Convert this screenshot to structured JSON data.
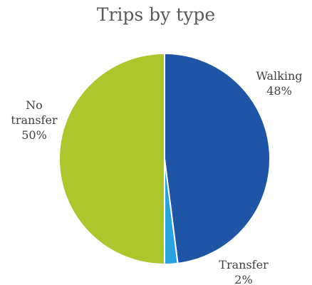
{
  "chart_data": {
    "type": "pie",
    "title": "Trips by type",
    "slices": [
      {
        "name": "Walking",
        "value": 48,
        "pct_label": "48%",
        "color": "#1f55a7",
        "name_lines": [
          "Walking"
        ]
      },
      {
        "name": "Transfer",
        "value": 2,
        "pct_label": "2%",
        "color": "#29a3e0",
        "name_lines": [
          "Transfer"
        ]
      },
      {
        "name": "No transfer",
        "value": 50,
        "pct_label": "50%",
        "color": "#adc62b",
        "name_lines": [
          "No",
          "transfer"
        ]
      }
    ],
    "start": "12 o'clock",
    "direction": "clockwise",
    "legend": "none",
    "label_placement": "outside"
  }
}
